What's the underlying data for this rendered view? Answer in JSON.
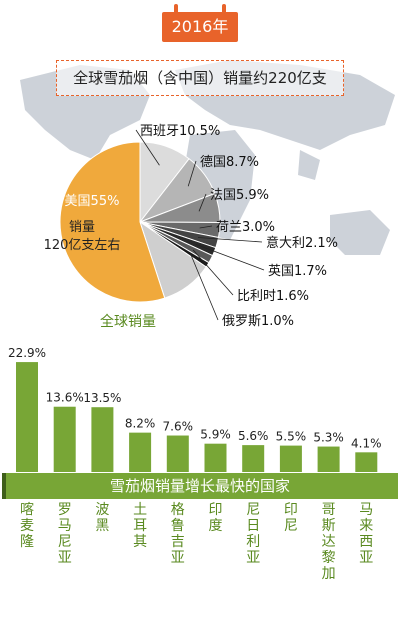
{
  "year_badge": "2016年",
  "headline": "全球雪茄烟（含中国）销量约220亿支",
  "chart_data": [
    {
      "type": "pie",
      "title": "全球雪茄烟（含中国）销量约220亿支",
      "caption": "全球销量",
      "center_note": "销量120亿支左右",
      "slices": [
        {
          "label": "美国55%",
          "value": 55,
          "color": "#f0a93c"
        },
        {
          "label": "西班牙10.5%",
          "value": 10.5,
          "color": "#dcdcdc"
        },
        {
          "label": "德国8.7%",
          "value": 8.7,
          "color": "#b5b5b5"
        },
        {
          "label": "法国5.9%",
          "value": 5.9,
          "color": "#8c8c8c"
        },
        {
          "label": "荷兰3.0%",
          "value": 3.0,
          "color": "#6a6a6a"
        },
        {
          "label": "意大利2.1%",
          "value": 2.1,
          "color": "#444444"
        },
        {
          "label": "英国1.7%",
          "value": 1.7,
          "color": "#2a2a2a"
        },
        {
          "label": "比利时1.6%",
          "value": 1.6,
          "color": "#585858"
        },
        {
          "label": "俄罗斯1.0%",
          "value": 1.0,
          "color": "#1a1a1a"
        },
        {
          "label": "",
          "value": 10.5,
          "color": "#cfcfcf"
        }
      ]
    },
    {
      "type": "bar",
      "title": "雪茄烟销量增长最快的国家",
      "categories": [
        "喀麦隆",
        "罗马尼亚",
        "波黑",
        "土耳其",
        "格鲁吉亚",
        "印度",
        "尼日利亚",
        "印尼",
        "哥斯达黎加",
        "马来西亚"
      ],
      "values": [
        22.9,
        13.6,
        13.5,
        8.2,
        7.6,
        5.9,
        5.6,
        5.5,
        5.3,
        4.1
      ],
      "value_labels": [
        "22.9%",
        "13.6%",
        "13.5%",
        "8.2%",
        "7.6%",
        "5.9%",
        "5.6%",
        "5.5%",
        "5.3%",
        "4.1%"
      ],
      "ylim": [
        0,
        25
      ],
      "color": "#78a636"
    }
  ],
  "colors": {
    "accent": "#e8632a",
    "usa": "#f0a93c",
    "bar": "#78a636",
    "map": "#c9ced6"
  }
}
